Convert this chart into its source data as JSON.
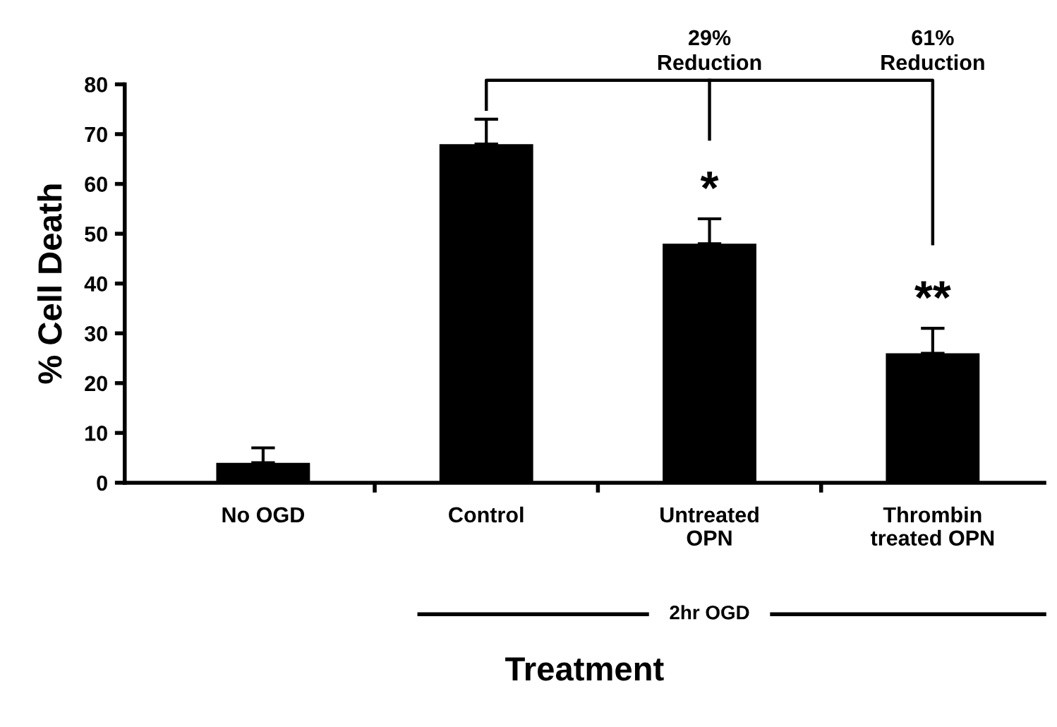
{
  "chart_data": {
    "type": "bar",
    "xlabel": "Treatment",
    "ylabel": "% Cell Death",
    "categories": [
      "No OGD",
      "Control",
      "Untreated\nOPN",
      "Thrombin\ntreated OPN"
    ],
    "values": [
      4,
      68,
      48,
      26
    ],
    "errors": [
      [
        4,
        7
      ],
      [
        68,
        73
      ],
      [
        48,
        53
      ],
      [
        26,
        31
      ]
    ],
    "color": "#000000",
    "ylim": [
      0,
      80
    ],
    "yticks": [
      0,
      10,
      20,
      30,
      40,
      50,
      60,
      70,
      80
    ],
    "grid": false,
    "legend": false,
    "annotations": [
      "*",
      "**",
      "29%\nReduction",
      "61%\nReduction",
      "2hr OGD"
    ]
  }
}
